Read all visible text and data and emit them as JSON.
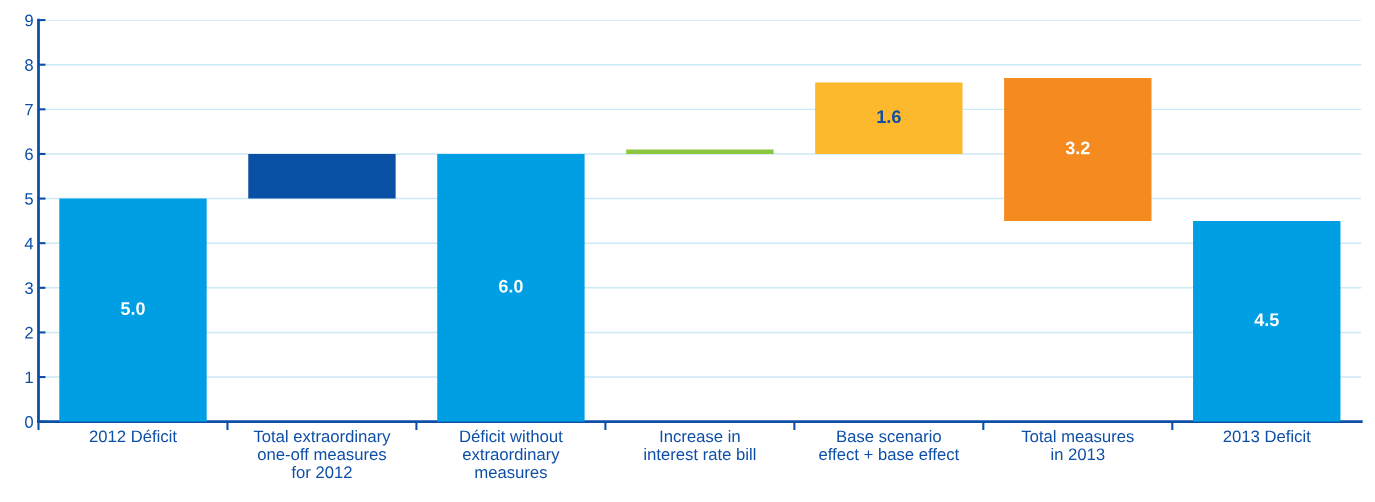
{
  "chart_data": {
    "type": "bar",
    "categories": [
      "2012 Déficit",
      "Total extraordinary\none-off measures\nfor 2012",
      "Déficit without\nextraordinary\nmeasures",
      "Increase in\ninterest rate bill",
      "Base scenario\neffect + base effect",
      "Total measures\nin 2013",
      "2013 Deficit"
    ],
    "values": [
      5.0,
      1.0,
      6.0,
      0.1,
      1.6,
      3.2,
      4.5
    ],
    "base": [
      0,
      5.0,
      0,
      6.0,
      6.0,
      4.5,
      0
    ],
    "colors": [
      "#009fe3",
      "#0a51a5",
      "#009fe3",
      "#8dc63f",
      "#fdb92e",
      "#f58a1f",
      "#009fe3"
    ],
    "value_labels": [
      "5.0",
      null,
      "6.0",
      null,
      "1.6",
      "3.2",
      "4.5"
    ],
    "ylim": [
      0,
      9
    ],
    "yticks": [
      0,
      1,
      2,
      3,
      4,
      5,
      6,
      7,
      8,
      9
    ],
    "grid": "y"
  }
}
